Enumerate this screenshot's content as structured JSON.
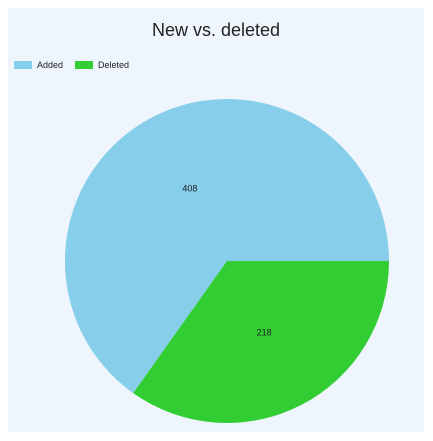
{
  "chart_data": {
    "type": "pie",
    "title": "New vs. deleted",
    "legend_position": "top-left",
    "start_angle": "0 degrees (3 o'clock), counterclockwise",
    "slices": [
      {
        "label": "Added",
        "value": 408,
        "color": "#87ceeb"
      },
      {
        "label": "Deleted",
        "value": 218,
        "color": "#32cd32"
      }
    ]
  }
}
